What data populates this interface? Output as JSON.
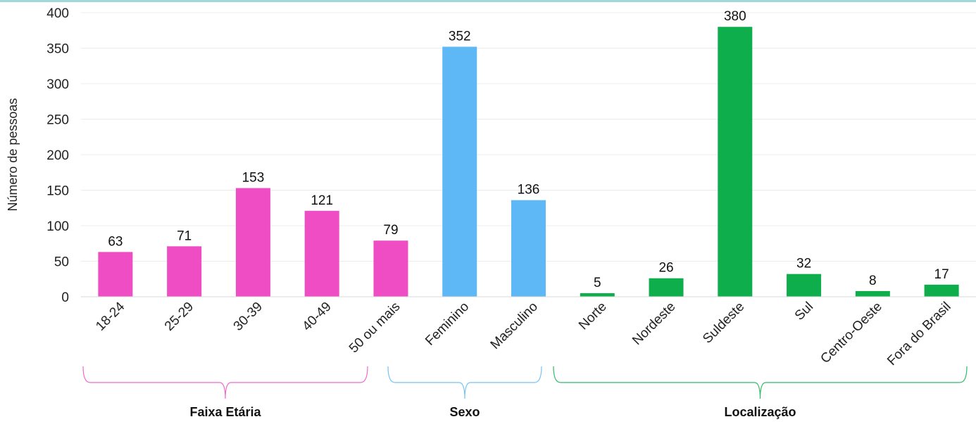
{
  "chart_data": {
    "type": "bar",
    "ylabel": "Número de pessoas",
    "ylim": [
      0,
      400
    ],
    "yticks": [
      0,
      50,
      100,
      150,
      200,
      250,
      300,
      350,
      400
    ],
    "grid": true,
    "categories": [
      "18-24",
      "25-29",
      "30-39",
      "40-49",
      "50 ou mais",
      "Feminino",
      "Masculino",
      "Norte",
      "Nordeste",
      "Suldeste",
      "Sul",
      "Centro-Oeste",
      "Fora do Brasil"
    ],
    "values": [
      63,
      71,
      153,
      121,
      79,
      352,
      136,
      5,
      26,
      380,
      32,
      8,
      17
    ],
    "groups": [
      {
        "label": "Faixa Etária",
        "color": "#ee4dc3",
        "start": 0,
        "end": 4
      },
      {
        "label": "Sexo",
        "color": "#5db8f5",
        "start": 5,
        "end": 6
      },
      {
        "label": "Localização",
        "color": "#0eae4c",
        "start": 7,
        "end": 12
      }
    ]
  }
}
